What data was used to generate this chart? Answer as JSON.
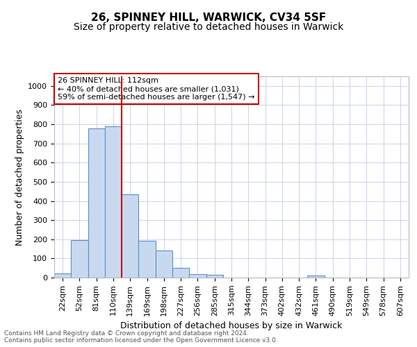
{
  "title1": "26, SPINNEY HILL, WARWICK, CV34 5SF",
  "title2": "Size of property relative to detached houses in Warwick",
  "xlabel": "Distribution of detached houses by size in Warwick",
  "ylabel": "Number of detached properties",
  "bar_labels": [
    "22sqm",
    "52sqm",
    "81sqm",
    "110sqm",
    "139sqm",
    "169sqm",
    "198sqm",
    "227sqm",
    "256sqm",
    "285sqm",
    "315sqm",
    "344sqm",
    "373sqm",
    "402sqm",
    "432sqm",
    "461sqm",
    "490sqm",
    "519sqm",
    "549sqm",
    "578sqm",
    "607sqm"
  ],
  "bar_values": [
    20,
    195,
    780,
    790,
    435,
    192,
    142,
    50,
    18,
    13,
    0,
    0,
    0,
    0,
    0,
    10,
    0,
    0,
    0,
    0,
    0
  ],
  "bar_color": "#c8d9ef",
  "bar_edge_color": "#5b8fc9",
  "vline_x_index": 3,
  "vline_color": "#cc0000",
  "annotation_text": "26 SPINNEY HILL: 112sqm\n← 40% of detached houses are smaller (1,031)\n59% of semi-detached houses are larger (1,547) →",
  "annotation_box_color": "#ffffff",
  "annotation_box_edge_color": "#cc0000",
  "ylim": [
    0,
    1050
  ],
  "yticks": [
    0,
    100,
    200,
    300,
    400,
    500,
    600,
    700,
    800,
    900,
    1000
  ],
  "footer_text": "Contains HM Land Registry data © Crown copyright and database right 2024.\nContains public sector information licensed under the Open Government Licence v3.0.",
  "bg_color": "#ffffff",
  "grid_color": "#c8d4e8",
  "title1_fontsize": 11,
  "title2_fontsize": 10,
  "axis_label_fontsize": 9,
  "tick_fontsize": 8
}
